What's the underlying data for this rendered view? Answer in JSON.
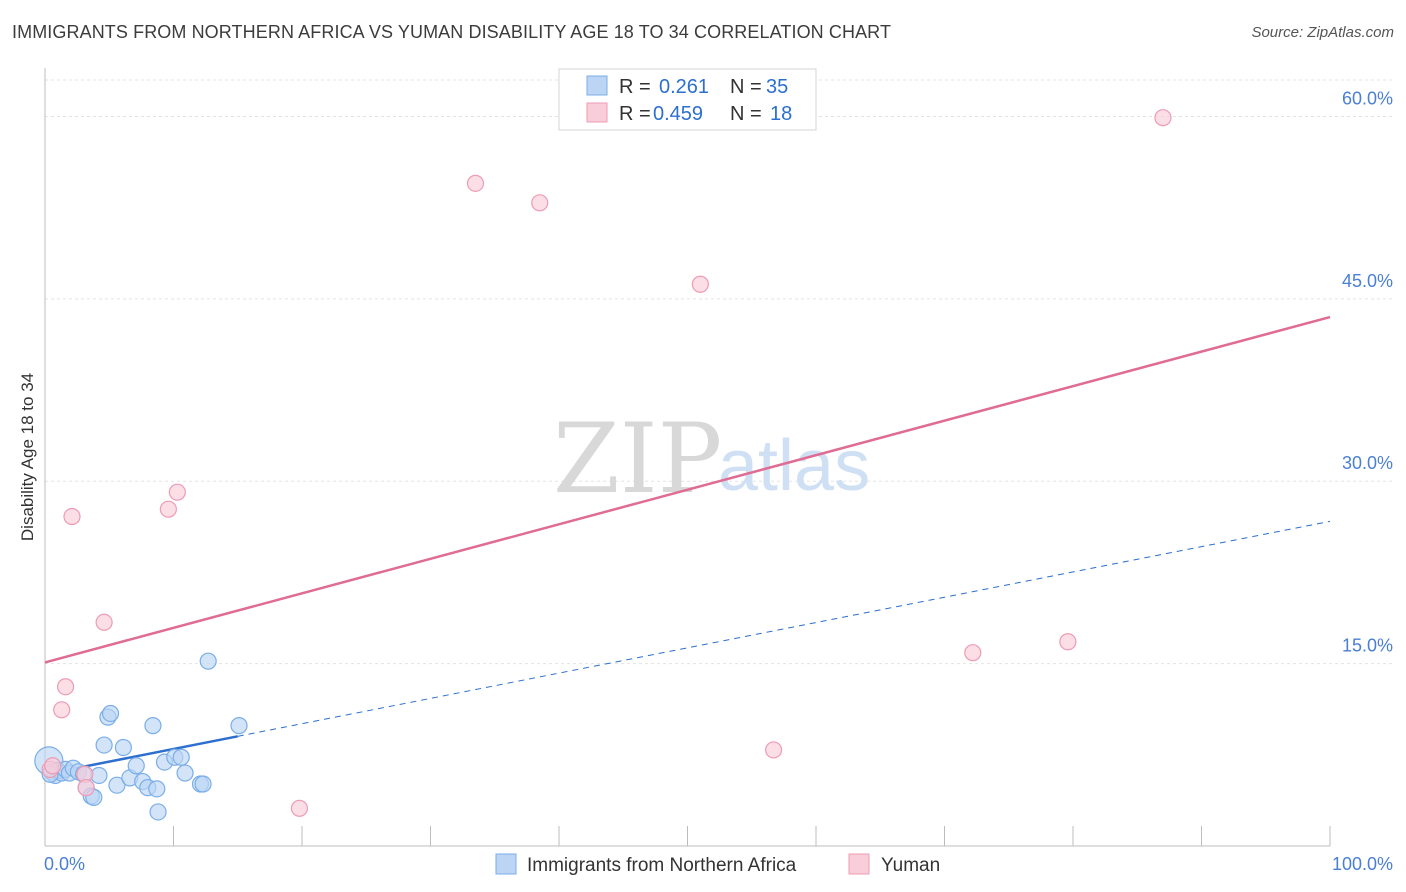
{
  "chart_data": {
    "type": "scatter",
    "title": "IMMIGRANTS FROM NORTHERN AFRICA VS YUMAN DISABILITY AGE 18 TO 34 CORRELATION CHART",
    "source": "Source: ZipAtlas.com",
    "xlabel": "",
    "ylabel": "Disability Age 18 to 34",
    "xlim": [
      0,
      100
    ],
    "ylim": [
      0,
      63
    ],
    "x_tick_labels": [
      "0.0%",
      "100.0%"
    ],
    "y_ticks": [
      {
        "value": 15,
        "label": "15.0%"
      },
      {
        "value": 30,
        "label": "30.0%"
      },
      {
        "value": 45,
        "label": "45.0%"
      },
      {
        "value": 60,
        "label": "60.0%"
      }
    ],
    "watermark": {
      "zip": "ZIP",
      "atlas": "atlas"
    },
    "legend": {
      "r_label": "R =",
      "n_label": "N =",
      "entries": [
        {
          "series": "Immigrants from Northern Africa",
          "r": "0.261",
          "n": "35"
        },
        {
          "series": "Yuman",
          "r": "0.459",
          "n": "18"
        }
      ]
    },
    "series": [
      {
        "name": "Immigrants from Northern Africa",
        "color": "#7aaee8",
        "fill": "#bcd5f5",
        "trend_color": "#2c6fcf",
        "trend": {
          "x0": 0,
          "y0": 5.9,
          "x1": 100,
          "y1": 26.7,
          "solid_until": 15
        },
        "points": [
          [
            0.3,
            7.0
          ],
          [
            0.5,
            6.1
          ],
          [
            0.8,
            5.8
          ],
          [
            1.0,
            6.2
          ],
          [
            1.3,
            6.0
          ],
          [
            1.6,
            6.3
          ],
          [
            1.9,
            6.0
          ],
          [
            2.2,
            6.4
          ],
          [
            2.6,
            6.1
          ],
          [
            3.0,
            5.9
          ],
          [
            3.2,
            4.8
          ],
          [
            3.6,
            4.1
          ],
          [
            3.8,
            4.0
          ],
          [
            4.2,
            5.8
          ],
          [
            4.6,
            8.3
          ],
          [
            4.9,
            10.6
          ],
          [
            5.1,
            10.9
          ],
          [
            5.6,
            5.0
          ],
          [
            6.1,
            8.1
          ],
          [
            6.6,
            5.6
          ],
          [
            7.1,
            6.6
          ],
          [
            7.6,
            5.3
          ],
          [
            8.0,
            4.8
          ],
          [
            8.4,
            9.9
          ],
          [
            8.8,
            2.8
          ],
          [
            8.7,
            4.7
          ],
          [
            9.3,
            6.9
          ],
          [
            10.1,
            7.3
          ],
          [
            10.6,
            7.3
          ],
          [
            10.9,
            6.0
          ],
          [
            12.1,
            5.1
          ],
          [
            12.3,
            5.1
          ],
          [
            12.7,
            15.2
          ],
          [
            15.1,
            9.9
          ],
          [
            0.4,
            5.9
          ]
        ]
      },
      {
        "name": "Yuman",
        "color": "#ee9bb4",
        "fill": "#f9cdd9",
        "trend_color": "#e06b93",
        "trend": {
          "x0": 0,
          "y0": 15.1,
          "x1": 100,
          "y1": 43.5
        },
        "points": [
          [
            0.4,
            6.3
          ],
          [
            0.6,
            6.6
          ],
          [
            1.3,
            11.2
          ],
          [
            1.6,
            13.1
          ],
          [
            2.1,
            27.1
          ],
          [
            3.1,
            5.9
          ],
          [
            3.2,
            4.8
          ],
          [
            4.6,
            18.4
          ],
          [
            9.6,
            27.7
          ],
          [
            10.3,
            29.1
          ],
          [
            19.8,
            3.1
          ],
          [
            33.5,
            54.5
          ],
          [
            38.5,
            52.9
          ],
          [
            51.0,
            46.2
          ],
          [
            56.7,
            7.9
          ],
          [
            72.2,
            15.9
          ],
          [
            79.6,
            16.8
          ],
          [
            87.0,
            59.9
          ]
        ]
      }
    ]
  }
}
